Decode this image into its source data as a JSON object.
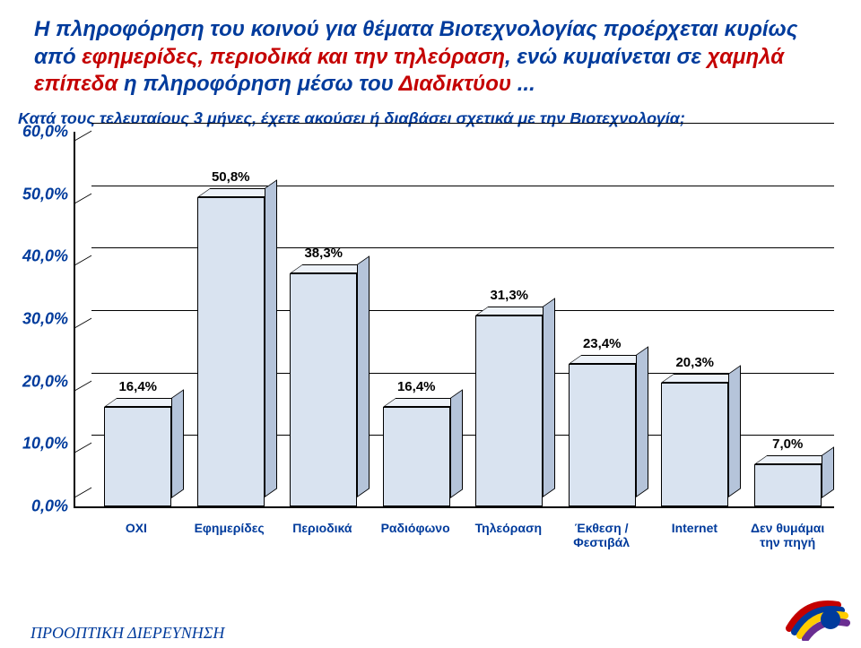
{
  "title": {
    "segments": [
      {
        "text": "Η πληροφόρηση του κοινού για θέματα Βιοτεχνολογίας προέρχεται κυρίως από ",
        "color": "#003b9c"
      },
      {
        "text": "εφημερίδες, περιοδικά και την τηλεόραση",
        "color": "#c40000"
      },
      {
        "text": ", ενώ κυμαίνεται σε ",
        "color": "#003b9c"
      },
      {
        "text": "χαμηλά επίπεδα ",
        "color": "#c40000"
      },
      {
        "text": "η πληροφόρηση μέσω του ",
        "color": "#003b9c"
      },
      {
        "text": "Διαδικτύου",
        "color": "#c40000"
      },
      {
        "text": " ...",
        "color": "#003b9c"
      }
    ],
    "fontsize": 24,
    "fontweight": "bold",
    "fontstyle": "italic"
  },
  "subtitle": {
    "text": "Κατά τους τελευταίους 3 μήνες, έχετε ακούσει ή διαβάσει σχετικά με την Βιοτεχνολογία;",
    "color": "#003b9c",
    "fontsize": 18
  },
  "chart": {
    "type": "bar",
    "categories": [
      "ΟΧΙ",
      "Εφημερίδες",
      "Περιοδικά",
      "Ραδιόφωνο",
      "Τηλεόραση",
      "Έκθεση /\nΦεστιβάλ",
      "Internet",
      "Δεν θυμάμαι\nτην πηγή"
    ],
    "values": [
      16.4,
      50.8,
      38.3,
      16.4,
      31.3,
      23.4,
      20.3,
      7.0
    ],
    "value_labels": [
      "16,4%",
      "50,8%",
      "38,3%",
      "16,4%",
      "31,3%",
      "23,4%",
      "20,3%",
      "7,0%"
    ],
    "bar_front_color": "#d9e3f0",
    "bar_top_color": "#edf2f9",
    "bar_side_color": "#b5c4da",
    "grid_color": "#000000",
    "yticks": [
      0,
      10,
      20,
      30,
      40,
      50,
      60
    ],
    "ytick_labels": [
      "0,0%",
      "10,0%",
      "20,0%",
      "30,0%",
      "40,0%",
      "50,0%",
      "60,0%"
    ],
    "ylim_max": 60,
    "y_label_color": "#003b9c",
    "y_label_fontsize": 18,
    "x_label_color": "#003b9c",
    "x_label_fontsize": 14,
    "value_label_fontsize": 15,
    "value_label_color": "#000000",
    "background_color": "#ffffff"
  },
  "footer": {
    "text": "ΠΡΟΟΠΤΙΚΗ ΔΙΕΡΕΥΝΗΣΗ",
    "color": "#003b9c",
    "fontsize": 18
  },
  "logo": {
    "arc_colors": [
      "#c40000",
      "#003b9c",
      "#ffcc00",
      "#6a2e91"
    ]
  }
}
